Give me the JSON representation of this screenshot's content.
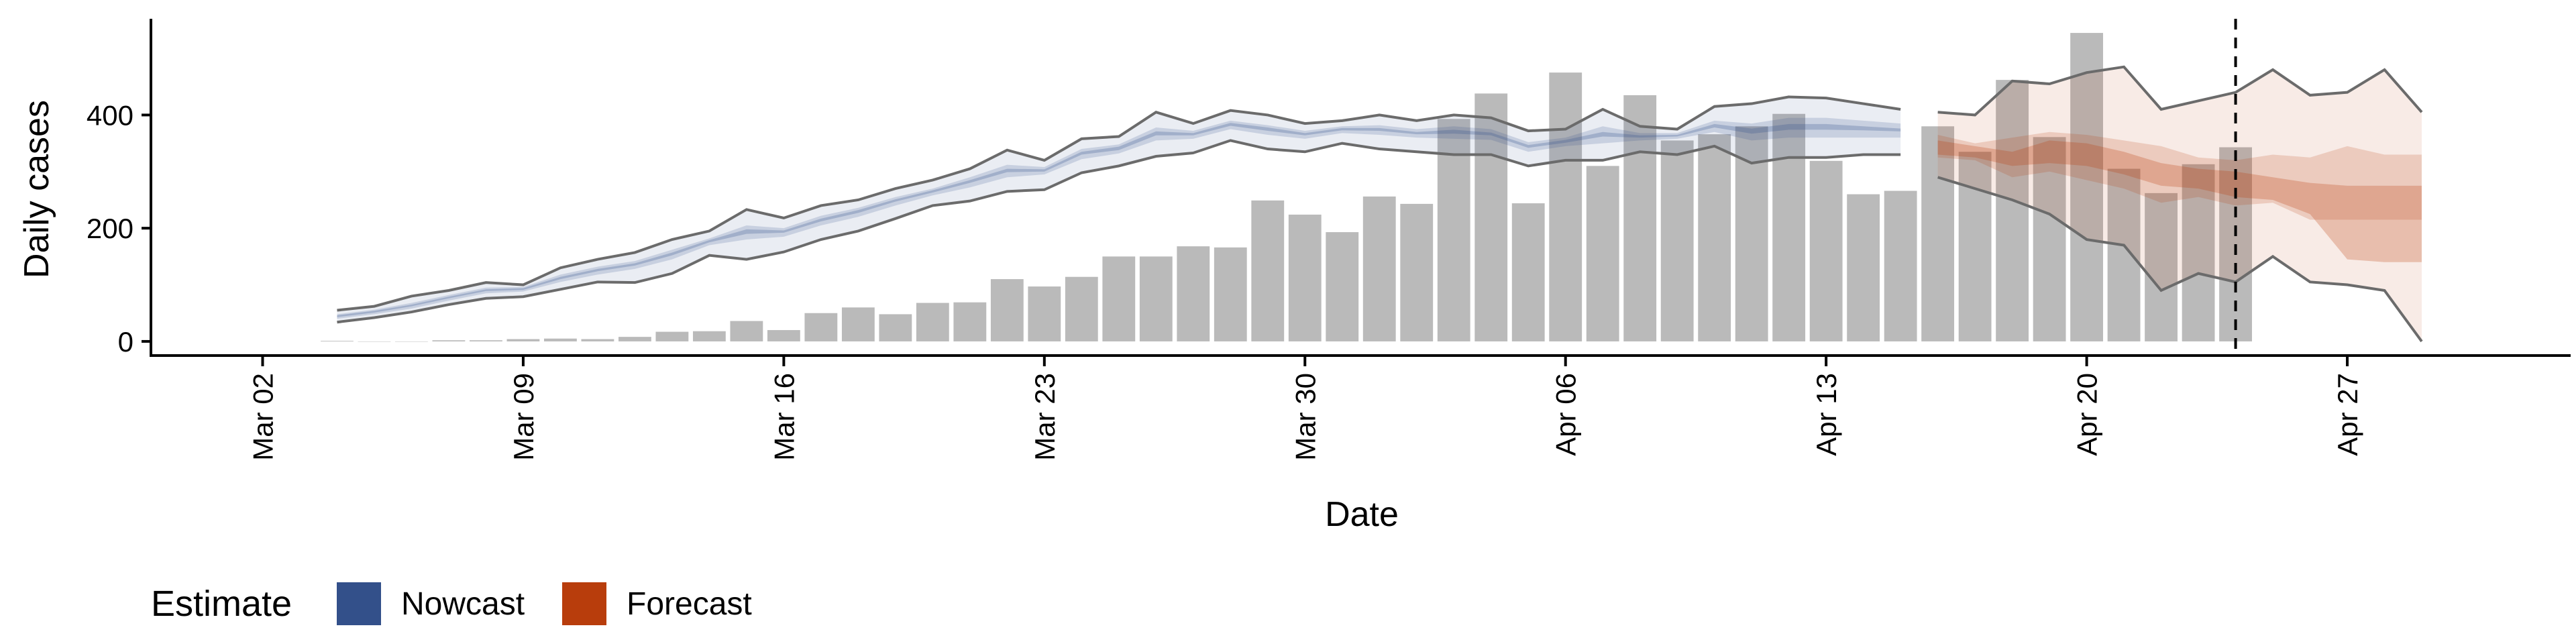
{
  "chart_data": {
    "type": "bar",
    "title": "",
    "xlabel": "Date",
    "ylabel": "Daily cases",
    "ylim": [
      -25,
      570
    ],
    "yticks": [
      0,
      200,
      400
    ],
    "x_start": "2020-03-04",
    "xticks": [
      {
        "label": "Mar 02",
        "date": "2020-03-02"
      },
      {
        "label": "Mar 09",
        "date": "2020-03-09"
      },
      {
        "label": "Mar 16",
        "date": "2020-03-16"
      },
      {
        "label": "Mar 23",
        "date": "2020-03-23"
      },
      {
        "label": "Mar 30",
        "date": "2020-03-30"
      },
      {
        "label": "Apr 06",
        "date": "2020-04-06"
      },
      {
        "label": "Apr 13",
        "date": "2020-04-13"
      },
      {
        "label": "Apr 20",
        "date": "2020-04-20"
      },
      {
        "label": "Apr 27",
        "date": "2020-04-27"
      }
    ],
    "xlim": [
      "2020-02-28",
      "2020-05-03"
    ],
    "reported_cases": {
      "dates": [
        "2020-03-04",
        "2020-03-05",
        "2020-03-06",
        "2020-03-07",
        "2020-03-08",
        "2020-03-09",
        "2020-03-10",
        "2020-03-11",
        "2020-03-12",
        "2020-03-13",
        "2020-03-14",
        "2020-03-15",
        "2020-03-16",
        "2020-03-17",
        "2020-03-18",
        "2020-03-19",
        "2020-03-20",
        "2020-03-21",
        "2020-03-22",
        "2020-03-23",
        "2020-03-24",
        "2020-03-25",
        "2020-03-26",
        "2020-03-27",
        "2020-03-28",
        "2020-03-29",
        "2020-03-30",
        "2020-03-31",
        "2020-04-01",
        "2020-04-02",
        "2020-04-03",
        "2020-04-04",
        "2020-04-05",
        "2020-04-06",
        "2020-04-07",
        "2020-04-08",
        "2020-04-09",
        "2020-04-10",
        "2020-04-11",
        "2020-04-12",
        "2020-04-13",
        "2020-04-14",
        "2020-04-15",
        "2020-04-16",
        "2020-04-17",
        "2020-04-18",
        "2020-04-19",
        "2020-04-20",
        "2020-04-21",
        "2020-04-22",
        "2020-04-23",
        "2020-04-24"
      ],
      "values": [
        1,
        0,
        0,
        2,
        2,
        4,
        5,
        4,
        8,
        17,
        18,
        36,
        20,
        50,
        60,
        48,
        68,
        69,
        110,
        97,
        114,
        150,
        150,
        168,
        166,
        249,
        224,
        193,
        256,
        243,
        393,
        438,
        244,
        475,
        310,
        435,
        355,
        366,
        380,
        402,
        319,
        260,
        266,
        380,
        335,
        462,
        361,
        545,
        305,
        262,
        313,
        343
      ],
      "color": "#bababa"
    },
    "series": [
      {
        "name": "Nowcast",
        "color": "#33508a",
        "dates": [
          "2020-03-04",
          "2020-03-05",
          "2020-03-06",
          "2020-03-07",
          "2020-03-08",
          "2020-03-09",
          "2020-03-10",
          "2020-03-11",
          "2020-03-12",
          "2020-03-13",
          "2020-03-14",
          "2020-03-15",
          "2020-03-16",
          "2020-03-17",
          "2020-03-18",
          "2020-03-19",
          "2020-03-20",
          "2020-03-21",
          "2020-03-22",
          "2020-03-23",
          "2020-03-24",
          "2020-03-25",
          "2020-03-26",
          "2020-03-27",
          "2020-03-28",
          "2020-03-29",
          "2020-03-30",
          "2020-03-31",
          "2020-04-01",
          "2020-04-02",
          "2020-04-03",
          "2020-04-04",
          "2020-04-05",
          "2020-04-06",
          "2020-04-07",
          "2020-04-08",
          "2020-04-09",
          "2020-04-10",
          "2020-04-11",
          "2020-04-12",
          "2020-04-13",
          "2020-04-14",
          "2020-04-15"
        ],
        "lower_90": [
          34,
          42,
          52,
          65,
          76,
          79,
          92,
          105,
          104,
          120,
          152,
          145,
          158,
          180,
          195,
          217,
          240,
          248,
          265,
          268,
          298,
          310,
          327,
          333,
          355,
          340,
          335,
          350,
          340,
          335,
          330,
          330,
          310,
          320,
          320,
          335,
          330,
          345,
          315,
          325,
          325,
          330,
          330
        ],
        "upper_90": [
          55,
          62,
          80,
          90,
          104,
          100,
          130,
          145,
          157,
          180,
          195,
          233,
          218,
          240,
          250,
          270,
          285,
          305,
          338,
          320,
          358,
          362,
          405,
          385,
          408,
          400,
          385,
          390,
          400,
          390,
          400,
          395,
          372,
          375,
          410,
          380,
          375,
          415,
          420,
          432,
          430,
          420,
          410
        ],
        "lower_50": [
          40,
          48,
          58,
          72,
          85,
          88,
          105,
          118,
          128,
          145,
          170,
          180,
          185,
          205,
          220,
          240,
          258,
          272,
          290,
          295,
          322,
          332,
          355,
          358,
          375,
          365,
          358,
          368,
          365,
          360,
          358,
          356,
          335,
          345,
          350,
          355,
          358,
          370,
          355,
          360,
          360,
          360,
          360
        ],
        "upper_50": [
          48,
          56,
          68,
          82,
          95,
          96,
          118,
          132,
          142,
          162,
          182,
          205,
          200,
          222,
          236,
          255,
          270,
          290,
          312,
          308,
          340,
          348,
          378,
          372,
          390,
          382,
          372,
          380,
          382,
          375,
          380,
          375,
          352,
          360,
          380,
          368,
          368,
          390,
          385,
          395,
          395,
          390,
          385
        ],
        "lower_20": [
          43,
          51,
          62,
          76,
          89,
          91,
          110,
          124,
          134,
          152,
          175,
          190,
          192,
          212,
          227,
          247,
          263,
          280,
          299,
          300,
          330,
          338,
          364,
          364,
          381,
          372,
          364,
          373,
          372,
          366,
          367,
          364,
          342,
          351,
          362,
          360,
          362,
          378,
          367,
          374,
          374,
          373,
          371
        ],
        "upper_20": [
          46,
          54,
          65,
          79,
          92,
          94,
          114,
          128,
          138,
          157,
          179,
          198,
          196,
          217,
          232,
          251,
          267,
          285,
          305,
          304,
          335,
          344,
          371,
          368,
          386,
          378,
          368,
          377,
          377,
          370,
          374,
          369,
          347,
          356,
          370,
          364,
          365,
          384,
          376,
          384,
          384,
          380,
          376
        ]
      },
      {
        "name": "Forecast",
        "color": "#b83d0c",
        "dates": [
          "2020-04-16",
          "2020-04-17",
          "2020-04-18",
          "2020-04-19",
          "2020-04-20",
          "2020-04-21",
          "2020-04-22",
          "2020-04-23",
          "2020-04-24",
          "2020-04-25",
          "2020-04-26",
          "2020-04-27",
          "2020-04-28",
          "2020-04-29"
        ],
        "lower_90": [
          290,
          270,
          250,
          225,
          180,
          170,
          90,
          120,
          105,
          150,
          105,
          100,
          90,
          0
        ],
        "upper_90": [
          405,
          400,
          460,
          455,
          475,
          485,
          410,
          425,
          440,
          480,
          435,
          440,
          480,
          405
        ],
        "lower_50": [
          325,
          320,
          290,
          300,
          285,
          270,
          245,
          255,
          240,
          245,
          215,
          215,
          215,
          215
        ],
        "upper_50": [
          365,
          350,
          360,
          370,
          365,
          355,
          345,
          325,
          320,
          330,
          325,
          345,
          330,
          330
        ],
        "lower_20": [
          330,
          325,
          310,
          315,
          310,
          295,
          275,
          270,
          255,
          250,
          225,
          145,
          140,
          140
        ],
        "upper_20": [
          355,
          345,
          335,
          355,
          350,
          335,
          315,
          305,
          300,
          290,
          280,
          275,
          275,
          275
        ]
      }
    ],
    "reference_line": {
      "date": "2020-04-24",
      "style": "dashed"
    },
    "legend": {
      "title": "Estimate",
      "position": "bottom-left",
      "entries": [
        {
          "label": "Nowcast",
          "color": "#33508a"
        },
        {
          "label": "Forecast",
          "color": "#b83d0c"
        }
      ]
    },
    "grid": false
  }
}
